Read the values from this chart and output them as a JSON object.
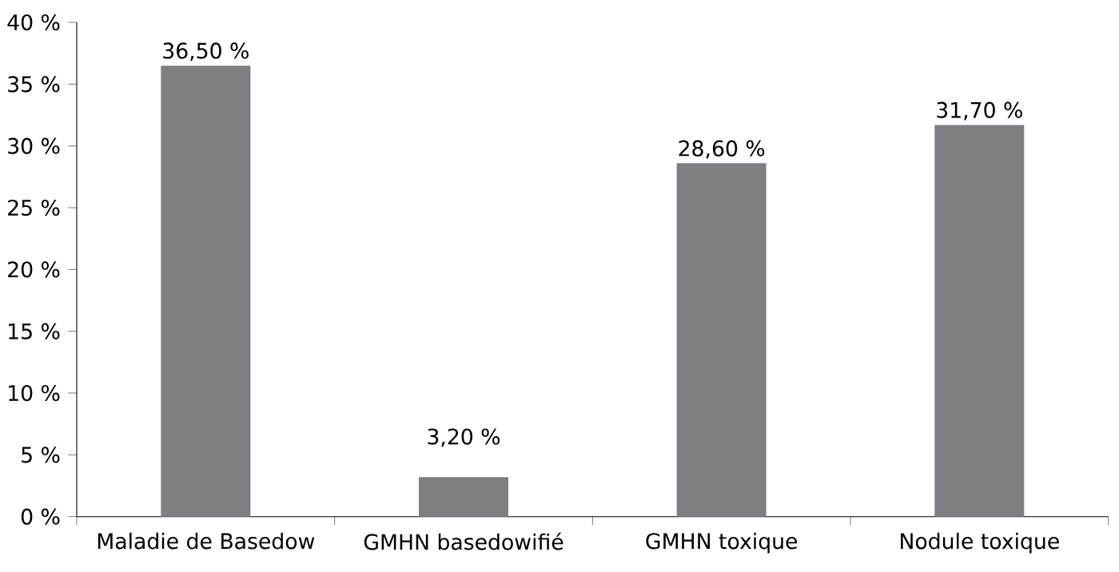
{
  "chart_data": {
    "type": "bar",
    "categories": [
      "Maladie de Basedow",
      "GMHN basedowifié",
      "GMHN toxique",
      "Nodule toxique"
    ],
    "values": [
      36.5,
      3.2,
      28.6,
      31.7
    ],
    "value_labels": [
      "36,50 %",
      "3,20 %",
      "28,60 %",
      "31,70 %"
    ],
    "color": "#7f7f83",
    "ylim": [
      0,
      40
    ],
    "yticks": [
      {
        "value": 0,
        "label": "0 %"
      },
      {
        "value": 5,
        "label": "5 %"
      },
      {
        "value": 10,
        "label": "10 %"
      },
      {
        "value": 15,
        "label": "15 %"
      },
      {
        "value": 20,
        "label": "20 %"
      },
      {
        "value": 25,
        "label": "25 %"
      },
      {
        "value": 30,
        "label": "30 %"
      },
      {
        "value": 35,
        "label": "35 %"
      },
      {
        "value": 40,
        "label": "40 %"
      }
    ],
    "grid": false
  }
}
